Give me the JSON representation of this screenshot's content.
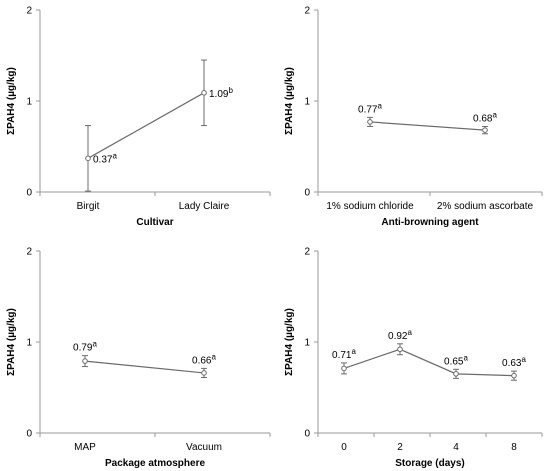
{
  "chart_data": [
    {
      "type": "line",
      "xlabel": "Cultivar",
      "ylabel": "ΣPAH4 (µg/kg)",
      "ylim": [
        0,
        2
      ],
      "yticks": [
        "0",
        "1",
        "2"
      ],
      "categories": [
        "Birgit",
        "Lady Claire"
      ],
      "values": [
        0.37,
        1.09
      ],
      "error": [
        0.36,
        0.36
      ],
      "labels": [
        "0.37",
        "1.09"
      ],
      "sig": [
        "a",
        "b"
      ],
      "label_side": [
        "right",
        "right"
      ]
    },
    {
      "type": "line",
      "xlabel": "Anti-browning agent",
      "ylabel": "ΣPAH4 (µg/kg)",
      "ylim": [
        0,
        2
      ],
      "yticks": [
        "0",
        "1",
        "2"
      ],
      "categories": [
        "1% sodium chloride",
        "2% sodium ascorbate"
      ],
      "values": [
        0.77,
        0.68
      ],
      "error": [
        0.05,
        0.04
      ],
      "labels": [
        "0.77",
        "0.68"
      ],
      "sig": [
        "a",
        "a"
      ],
      "label_side": [
        "above",
        "above"
      ]
    },
    {
      "type": "line",
      "xlabel": "Package atmosphere",
      "ylabel": "ΣPAH4 (µg/kg)",
      "ylim": [
        0,
        2
      ],
      "yticks": [
        "0",
        "1",
        "2"
      ],
      "categories": [
        "MAP",
        "Vacuum"
      ],
      "values": [
        0.79,
        0.66
      ],
      "error": [
        0.06,
        0.05
      ],
      "labels": [
        "0.79",
        "0.66"
      ],
      "sig": [
        "a",
        "a"
      ],
      "label_side": [
        "above",
        "above"
      ]
    },
    {
      "type": "line",
      "xlabel": "Storage (days)",
      "ylabel": "ΣPAH4 (µg/kg)",
      "ylim": [
        0,
        2
      ],
      "yticks": [
        "0",
        "1",
        "2"
      ],
      "categories": [
        "0",
        "2",
        "4",
        "8"
      ],
      "values": [
        0.71,
        0.92,
        0.65,
        0.63
      ],
      "error": [
        0.06,
        0.06,
        0.05,
        0.05
      ],
      "labels": [
        "0.71",
        "0.92",
        "0.65",
        "0.63"
      ],
      "sig": [
        "a",
        "a",
        "a",
        "a"
      ],
      "label_side": [
        "above",
        "above",
        "above",
        "above"
      ]
    }
  ],
  "colors": {
    "line": "#6b6b6b",
    "axis": "#9a9a9a",
    "text": "#000000"
  }
}
